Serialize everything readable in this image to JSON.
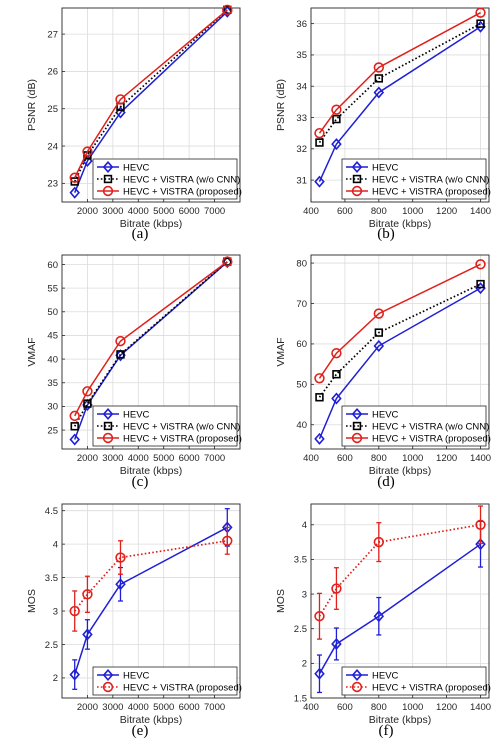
{
  "chart_data": [
    {
      "type": "line",
      "caption": "(a)",
      "xlabel": "Bitrate (kbps)",
      "ylabel": "PSNR (dB)",
      "xlim": [
        1000,
        8000
      ],
      "ylim": [
        22.5,
        27.7
      ],
      "xticks": [
        2000,
        3000,
        4000,
        5000,
        6000,
        7000
      ],
      "yticks": [
        23,
        24,
        25,
        26,
        27
      ],
      "grid": true,
      "legend": "bottom-right",
      "series": [
        {
          "name": "HEVC",
          "color": "#1f1fd6",
          "marker": "diamond",
          "dash": "solid",
          "errors": null,
          "x": [
            1500,
            2000,
            3300,
            7500
          ],
          "y": [
            22.75,
            23.6,
            24.9,
            27.6
          ]
        },
        {
          "name": "HEVC + ViSTRA (w/o CNN)",
          "color": "#000000",
          "marker": "square",
          "dash": "dotted",
          "errors": null,
          "x": [
            1500,
            2000,
            3300,
            7500
          ],
          "y": [
            23.05,
            23.75,
            25.05,
            27.65
          ]
        },
        {
          "name": "HEVC + ViSTRA (proposed)",
          "color": "#e0201b",
          "marker": "circle",
          "dash": "solid",
          "errors": null,
          "x": [
            1500,
            2000,
            3300,
            7500
          ],
          "y": [
            23.15,
            23.85,
            25.25,
            27.65
          ]
        }
      ]
    },
    {
      "type": "line",
      "caption": "(b)",
      "xlabel": "Bitrate (kbps)",
      "ylabel": "PSNR (dB)",
      "xlim": [
        400,
        1450
      ],
      "ylim": [
        30.3,
        36.5
      ],
      "xticks": [
        400,
        600,
        800,
        1000,
        1200,
        1400
      ],
      "yticks": [
        31,
        32,
        33,
        34,
        35,
        36
      ],
      "grid": true,
      "legend": "bottom-right",
      "series": [
        {
          "name": "HEVC",
          "color": "#1f1fd6",
          "marker": "diamond",
          "dash": "solid",
          "errors": null,
          "x": [
            450,
            550,
            800,
            1400
          ],
          "y": [
            30.95,
            32.15,
            33.8,
            35.9
          ]
        },
        {
          "name": "HEVC + ViSTRA (w/o CNN)",
          "color": "#000000",
          "marker": "square",
          "dash": "dotted",
          "errors": null,
          "x": [
            450,
            550,
            800,
            1400
          ],
          "y": [
            32.2,
            32.95,
            34.25,
            36.0
          ]
        },
        {
          "name": "HEVC + ViSTRA (proposed)",
          "color": "#e0201b",
          "marker": "circle",
          "dash": "solid",
          "errors": null,
          "x": [
            450,
            550,
            800,
            1400
          ],
          "y": [
            32.5,
            33.25,
            34.6,
            36.35
          ]
        }
      ]
    },
    {
      "type": "line",
      "caption": "(c)",
      "xlabel": "Bitrate (kbps)",
      "ylabel": "VMAF",
      "xlim": [
        1000,
        8000
      ],
      "ylim": [
        21,
        62
      ],
      "xticks": [
        2000,
        3000,
        4000,
        5000,
        6000,
        7000
      ],
      "yticks": [
        25,
        30,
        35,
        40,
        45,
        50,
        55,
        60
      ],
      "grid": true,
      "legend": "bottom-right",
      "series": [
        {
          "name": "HEVC",
          "color": "#1f1fd6",
          "marker": "diamond",
          "dash": "solid",
          "errors": null,
          "x": [
            1500,
            2000,
            3300,
            7500
          ],
          "y": [
            23,
            30.3,
            40.8,
            60.5
          ]
        },
        {
          "name": "HEVC + ViSTRA (w/o CNN)",
          "color": "#000000",
          "marker": "square",
          "dash": "dotted",
          "errors": null,
          "x": [
            1500,
            2000,
            3300,
            7500
          ],
          "y": [
            25.8,
            30.6,
            41.0,
            60.6
          ]
        },
        {
          "name": "HEVC + ViSTRA (proposed)",
          "color": "#e0201b",
          "marker": "circle",
          "dash": "solid",
          "errors": null,
          "x": [
            1500,
            2000,
            3300,
            7500
          ],
          "y": [
            28.0,
            33.2,
            43.8,
            60.6
          ]
        }
      ]
    },
    {
      "type": "line",
      "caption": "(d)",
      "xlabel": "Bitrate (kbps)",
      "ylabel": "VMAF",
      "xlim": [
        400,
        1450
      ],
      "ylim": [
        34,
        82
      ],
      "xticks": [
        400,
        600,
        800,
        1000,
        1200,
        1400
      ],
      "yticks": [
        40,
        50,
        60,
        70,
        80
      ],
      "grid": true,
      "legend": "bottom-right",
      "series": [
        {
          "name": "HEVC",
          "color": "#1f1fd6",
          "marker": "diamond",
          "dash": "solid",
          "errors": null,
          "x": [
            450,
            550,
            800,
            1400
          ],
          "y": [
            36.5,
            46.5,
            59.5,
            73.8
          ]
        },
        {
          "name": "HEVC + ViSTRA (w/o CNN)",
          "color": "#000000",
          "marker": "square",
          "dash": "dotted",
          "errors": null,
          "x": [
            450,
            550,
            800,
            1400
          ],
          "y": [
            46.8,
            52.5,
            62.8,
            74.8
          ]
        },
        {
          "name": "HEVC + ViSTRA (proposed)",
          "color": "#e0201b",
          "marker": "circle",
          "dash": "solid",
          "errors": null,
          "x": [
            450,
            550,
            800,
            1400
          ],
          "y": [
            51.5,
            57.7,
            67.5,
            79.7
          ]
        }
      ]
    },
    {
      "type": "line",
      "caption": "(e)",
      "xlabel": "Bitrate (kbps)",
      "ylabel": "MOS",
      "xlim": [
        1000,
        8000
      ],
      "ylim": [
        1.7,
        4.6
      ],
      "xticks": [
        2000,
        3000,
        4000,
        5000,
        6000,
        7000
      ],
      "yticks": [
        2,
        2.5,
        3,
        3.5,
        4,
        4.5
      ],
      "grid": true,
      "legend": "bottom-right",
      "series": [
        {
          "name": "HEVC",
          "color": "#1f1fd6",
          "marker": "diamond",
          "dash": "solid",
          "x": [
            1500,
            2000,
            3300,
            7500
          ],
          "y": [
            2.05,
            2.65,
            3.4,
            4.25
          ],
          "errors": [
            0.22,
            0.22,
            0.25,
            0.28
          ]
        },
        {
          "name": "HEVC + ViSTRA (proposed)",
          "color": "#e0201b",
          "marker": "circle",
          "dash": "dotted",
          "x": [
            1500,
            2000,
            3300,
            7500
          ],
          "y": [
            3.0,
            3.25,
            3.8,
            4.05
          ],
          "errors": [
            0.3,
            0.27,
            0.25,
            0.2
          ]
        }
      ]
    },
    {
      "type": "line",
      "caption": "(f)",
      "xlabel": "Bitrate (kbps)",
      "ylabel": "MOS",
      "xlim": [
        400,
        1450
      ],
      "ylim": [
        1.5,
        4.3
      ],
      "xticks": [
        400,
        600,
        800,
        1000,
        1200,
        1400
      ],
      "yticks": [
        1.5,
        2,
        2.5,
        3,
        3.5,
        4
      ],
      "grid": true,
      "legend": "bottom-right",
      "series": [
        {
          "name": "HEVC",
          "color": "#1f1fd6",
          "marker": "diamond",
          "dash": "solid",
          "x": [
            450,
            550,
            800,
            1400
          ],
          "y": [
            1.85,
            2.28,
            2.68,
            3.72
          ],
          "errors": [
            0.27,
            0.23,
            0.27,
            0.33
          ]
        },
        {
          "name": "HEVC + ViSTRA (proposed)",
          "color": "#e0201b",
          "marker": "circle",
          "dash": "dotted",
          "x": [
            450,
            550,
            800,
            1400
          ],
          "y": [
            2.68,
            3.08,
            3.75,
            4.0
          ],
          "errors": [
            0.33,
            0.3,
            0.28,
            0.27
          ]
        }
      ]
    }
  ]
}
